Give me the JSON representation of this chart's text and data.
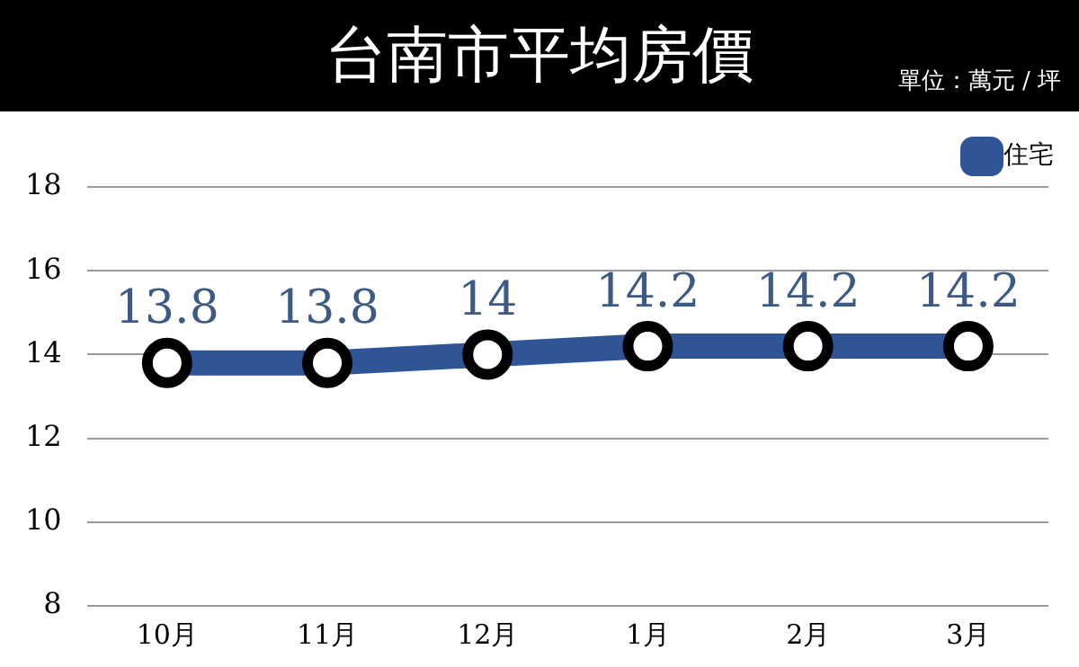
{
  "chart_data": {
    "type": "line",
    "title": "台南市平均房價",
    "subtitle": "單位：萬元 / 坪",
    "categories": [
      "10月",
      "11月",
      "12月",
      "1月",
      "2月",
      "3月"
    ],
    "series": [
      {
        "name": "住宅",
        "color": "#2f5597",
        "values": [
          13.8,
          13.8,
          14,
          14.2,
          14.2,
          14.2
        ]
      }
    ],
    "ylim": [
      8,
      18
    ],
    "yticks": [
      8,
      10,
      12,
      14,
      16,
      18
    ],
    "grid": "y",
    "legend": "top right",
    "marker": "circle",
    "data_labels": true
  }
}
